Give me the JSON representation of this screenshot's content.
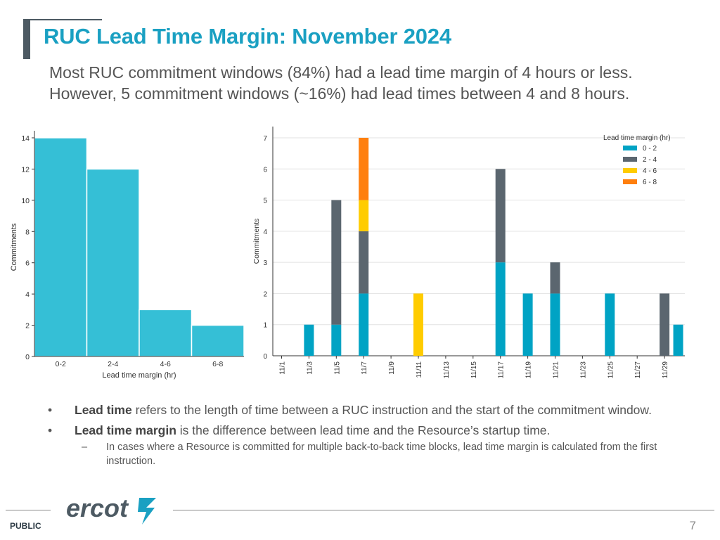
{
  "slide": {
    "title": "RUC Lead Time Margin: November 2024",
    "subtitle": "Most RUC commitment windows (84%) had a lead time margin of 4 hours or less. However, 5 commitment windows (~16%) had lead times between 4 and 8 hours.",
    "bullets": [
      {
        "marker": "•",
        "term": "Lead time",
        "text": " refers to the length of time between a RUC instruction and the start of the commitment window."
      },
      {
        "marker": "•",
        "term": "Lead time margin",
        "text": " is the difference between lead time and the Resource’s startup time."
      }
    ],
    "sub_bullet": {
      "marker": "–",
      "text": "In cases where a Resource is committed for multiple back-to-back time blocks, lead time margin is calculated from the first instruction."
    },
    "footer": {
      "classification": "PUBLIC",
      "page_number": "7",
      "logo_text": "ercot"
    }
  },
  "colors": {
    "title": "#1aa0c2",
    "bar": "#35bfd6",
    "c02": "#00a3c4",
    "c24": "#5b666f",
    "c46": "#ffcc00",
    "c68": "#ff7f0e"
  },
  "chart_data": [
    {
      "type": "bar",
      "title": "",
      "xlabel": "Lead time margin (hr)",
      "ylabel": "Commitments",
      "categories": [
        "0-2",
        "2-4",
        "4-6",
        "6-8"
      ],
      "values": [
        14,
        12,
        3,
        2
      ],
      "ylim": [
        0,
        14
      ],
      "yticks": [
        0,
        2,
        4,
        6,
        8,
        10,
        12,
        14
      ],
      "grid": false
    },
    {
      "type": "bar",
      "stacked": true,
      "title": "",
      "xlabel": "",
      "ylabel": "Commitments",
      "legend_title": "Lead time margin (hr)",
      "legend_position": "top-right",
      "categories": [
        "11/1",
        "11/2",
        "11/3",
        "11/4",
        "11/5",
        "11/6",
        "11/7",
        "11/8",
        "11/9",
        "11/10",
        "11/11",
        "11/12",
        "11/13",
        "11/14",
        "11/15",
        "11/16",
        "11/17",
        "11/18",
        "11/19",
        "11/20",
        "11/21",
        "11/22",
        "11/23",
        "11/24",
        "11/25",
        "11/26",
        "11/27",
        "11/28",
        "11/29",
        "11/30"
      ],
      "tick_labels": [
        "11/1",
        "11/3",
        "11/5",
        "11/7",
        "11/9",
        "11/11",
        "11/13",
        "11/15",
        "11/17",
        "11/19",
        "11/21",
        "11/23",
        "11/25",
        "11/27",
        "11/29"
      ],
      "series": [
        {
          "name": "0 - 2",
          "values": [
            0,
            0,
            1,
            0,
            1,
            0,
            2,
            0,
            0,
            0,
            0,
            0,
            0,
            0,
            0,
            0,
            3,
            0,
            2,
            0,
            2,
            0,
            0,
            0,
            2,
            0,
            0,
            0,
            0,
            1
          ]
        },
        {
          "name": "2 - 4",
          "values": [
            0,
            0,
            0,
            0,
            4,
            0,
            2,
            0,
            0,
            0,
            0,
            0,
            0,
            0,
            0,
            0,
            3,
            0,
            0,
            0,
            1,
            0,
            0,
            0,
            0,
            0,
            0,
            0,
            2,
            0
          ]
        },
        {
          "name": "4 - 6",
          "values": [
            0,
            0,
            0,
            0,
            0,
            0,
            1,
            0,
            0,
            0,
            2,
            0,
            0,
            0,
            0,
            0,
            0,
            0,
            0,
            0,
            0,
            0,
            0,
            0,
            0,
            0,
            0,
            0,
            0,
            0
          ]
        },
        {
          "name": "6 - 8",
          "values": [
            0,
            0,
            0,
            0,
            0,
            0,
            2,
            0,
            0,
            0,
            0,
            0,
            0,
            0,
            0,
            0,
            0,
            0,
            0,
            0,
            0,
            0,
            0,
            0,
            0,
            0,
            0,
            0,
            0,
            0
          ]
        }
      ],
      "ylim": [
        0,
        7.3
      ],
      "yticks": [
        0,
        1,
        2,
        3,
        4,
        5,
        6,
        7
      ],
      "grid": true
    }
  ]
}
